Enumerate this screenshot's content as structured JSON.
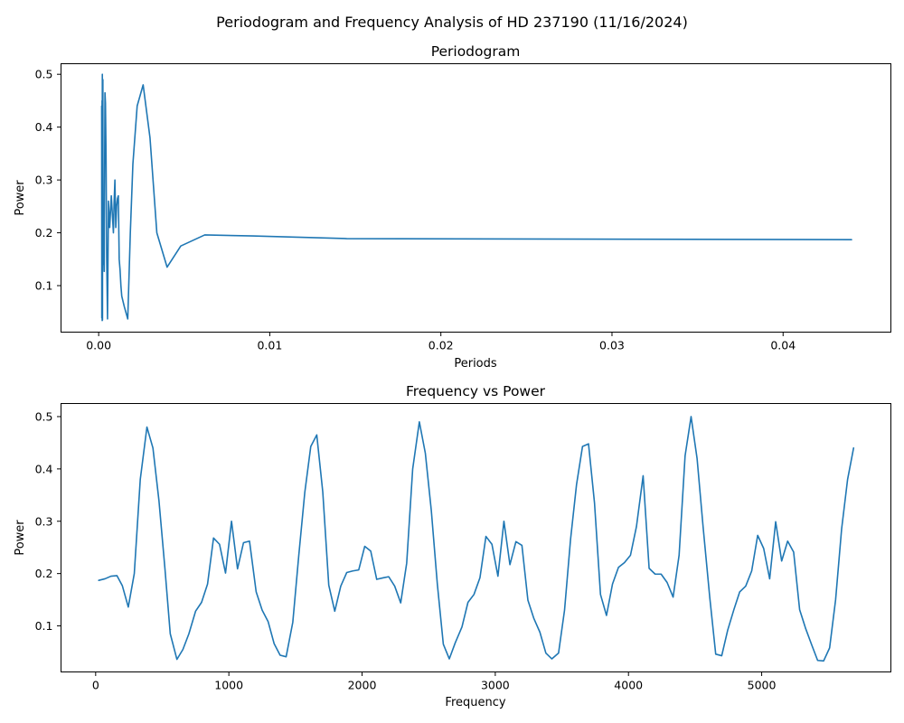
{
  "figure": {
    "suptitle": "Periodogram and Frequency Analysis of HD 237190 (11/16/2024)",
    "line_color": "#1f77b4"
  },
  "chart_data": [
    {
      "type": "line",
      "title": "Periodogram",
      "xlabel": "Periods",
      "ylabel": "Power",
      "xlim": [
        -0.0022,
        0.0463
      ],
      "ylim": [
        0.012,
        0.52
      ],
      "xticks": [
        0.0,
        0.01,
        0.02,
        0.03,
        0.04
      ],
      "xtick_labels": [
        "0.00",
        "0.01",
        "0.02",
        "0.03",
        "0.04"
      ],
      "yticks": [
        0.1,
        0.2,
        0.3,
        0.4,
        0.5
      ],
      "ytick_labels": [
        "0.1",
        "0.2",
        "0.3",
        "0.4",
        "0.5"
      ],
      "grid": false,
      "series": [
        {
          "x": [
            0.000176,
            0.000183,
            0.00019,
            0.000198,
            0.000206,
            0.000215,
            0.000224,
            0.000235,
            0.000246,
            0.000259,
            0.000272,
            0.000288,
            0.000305,
            0.000324,
            0.000345,
            0.00037,
            0.000398,
            0.000431,
            0.00047,
            0.000517,
            0.000575,
            0.000646,
            0.000739,
            0.000862,
            0.0009,
            0.00095,
            0.001,
            0.00105,
            0.0011,
            0.00115,
            0.0012,
            0.00125,
            0.0013,
            0.00135,
            0.0015,
            0.0017,
            0.00185,
            0.002,
            0.00225,
            0.0026,
            0.003,
            0.0034,
            0.004,
            0.0048,
            0.0062,
            0.009,
            0.0145,
            0.044
          ],
          "y": [
            0.44,
            0.039,
            0.3,
            0.45,
            0.034,
            0.5,
            0.035,
            0.49,
            0.49,
            0.14,
            0.18,
            0.25,
            0.16,
            0.127,
            0.3,
            0.465,
            0.445,
            0.35,
            0.15,
            0.037,
            0.26,
            0.21,
            0.27,
            0.2,
            0.255,
            0.3,
            0.21,
            0.25,
            0.265,
            0.27,
            0.15,
            0.13,
            0.1,
            0.08,
            0.06,
            0.037,
            0.2,
            0.33,
            0.44,
            0.48,
            0.38,
            0.2,
            0.135,
            0.175,
            0.196,
            0.194,
            0.189,
            0.187
          ]
        }
      ]
    },
    {
      "type": "line",
      "title": "Frequency vs Power",
      "xlabel": "Frequency",
      "ylabel": "Power",
      "xlim": [
        -260,
        5970
      ],
      "ylim": [
        0.012,
        0.525
      ],
      "xticks": [
        0,
        1000,
        2000,
        3000,
        4000,
        5000
      ],
      "xtick_labels": [
        "0",
        "1000",
        "2000",
        "3000",
        "4000",
        "5000"
      ],
      "yticks": [
        0.1,
        0.2,
        0.3,
        0.4,
        0.5
      ],
      "ytick_labels": [
        "0.1",
        "0.2",
        "0.3",
        "0.4",
        "0.5"
      ],
      "grid": false,
      "series": [
        {
          "x": [
            23,
            70,
            115,
            160,
            200,
            245,
            290,
            335,
            385,
            430,
            475,
            520,
            560,
            610,
            655,
            700,
            750,
            795,
            840,
            885,
            930,
            975,
            1020,
            1065,
            1110,
            1155,
            1205,
            1250,
            1295,
            1340,
            1385,
            1430,
            1480,
            1525,
            1570,
            1615,
            1660,
            1705,
            1750,
            1795,
            1840,
            1885,
            1930,
            1975,
            2020,
            2065,
            2110,
            2160,
            2200,
            2245,
            2290,
            2335,
            2380,
            2430,
            2475,
            2520,
            2565,
            2610,
            2655,
            2700,
            2750,
            2795,
            2840,
            2885,
            2930,
            2975,
            3020,
            3065,
            3110,
            3155,
            3200,
            3245,
            3290,
            3335,
            3380,
            3425,
            3475,
            3520,
            3565,
            3610,
            3655,
            3700,
            3745,
            3790,
            3835,
            3880,
            3925,
            3970,
            4015,
            4060,
            4110,
            4155,
            4200,
            4245,
            4290,
            4335,
            4380,
            4425,
            4470,
            4515,
            4560,
            4610,
            4655,
            4700,
            4745,
            4790,
            4835,
            4880,
            4925,
            4970,
            5015,
            5060,
            5105,
            5150,
            5195,
            5240,
            5285,
            5330,
            5375,
            5420,
            5465,
            5510,
            5555,
            5600,
            5645,
            5690
          ],
          "y": [
            0.187,
            0.19,
            0.195,
            0.196,
            0.177,
            0.136,
            0.2,
            0.38,
            0.48,
            0.44,
            0.34,
            0.21,
            0.085,
            0.036,
            0.055,
            0.085,
            0.128,
            0.145,
            0.18,
            0.268,
            0.256,
            0.201,
            0.3,
            0.209,
            0.259,
            0.262,
            0.165,
            0.13,
            0.108,
            0.066,
            0.044,
            0.041,
            0.107,
            0.235,
            0.355,
            0.443,
            0.465,
            0.356,
            0.178,
            0.128,
            0.176,
            0.202,
            0.205,
            0.207,
            0.252,
            0.243,
            0.189,
            0.192,
            0.194,
            0.176,
            0.144,
            0.22,
            0.4,
            0.49,
            0.43,
            0.32,
            0.18,
            0.065,
            0.037,
            0.068,
            0.098,
            0.145,
            0.16,
            0.192,
            0.271,
            0.256,
            0.195,
            0.3,
            0.217,
            0.261,
            0.254,
            0.149,
            0.114,
            0.088,
            0.048,
            0.037,
            0.048,
            0.13,
            0.265,
            0.37,
            0.443,
            0.448,
            0.335,
            0.16,
            0.12,
            0.18,
            0.212,
            0.221,
            0.235,
            0.29,
            0.387,
            0.21,
            0.199,
            0.199,
            0.183,
            0.155,
            0.235,
            0.425,
            0.5,
            0.42,
            0.29,
            0.155,
            0.046,
            0.043,
            0.092,
            0.13,
            0.165,
            0.176,
            0.205,
            0.273,
            0.248,
            0.19,
            0.299,
            0.224,
            0.262,
            0.241,
            0.131,
            0.095,
            0.064,
            0.034,
            0.033,
            0.058,
            0.15,
            0.285,
            0.38,
            0.44
          ]
        }
      ]
    }
  ]
}
